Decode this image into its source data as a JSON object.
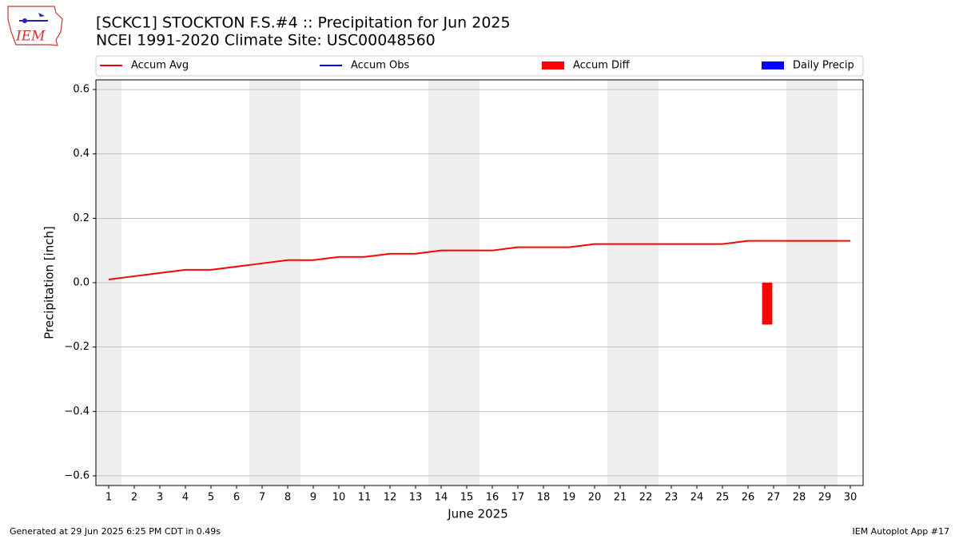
{
  "logo_text": "IEM",
  "footer": {
    "left": "Generated at 29 Jun 2025 6:25 PM CDT in 0.49s",
    "right": "IEM Autoplot App #17"
  },
  "chart_data": {
    "type": "line",
    "title": "[SCKC1] STOCKTON F.S.#4 :: Precipitation for Jun 2025",
    "subtitle": "NCEI 1991-2020 Climate Site: USC00048560",
    "x_label": "June 2025",
    "y_label": "Precipitation [inch]",
    "x": [
      1,
      2,
      3,
      4,
      5,
      6,
      7,
      8,
      9,
      10,
      11,
      12,
      13,
      14,
      15,
      16,
      17,
      18,
      19,
      20,
      21,
      22,
      23,
      24,
      25,
      26,
      27,
      28,
      29,
      30
    ],
    "xlim": [
      0.5,
      30.5
    ],
    "xticks": [
      1,
      2,
      3,
      4,
      5,
      6,
      7,
      8,
      9,
      10,
      11,
      12,
      13,
      14,
      15,
      16,
      17,
      18,
      19,
      20,
      21,
      22,
      23,
      24,
      25,
      26,
      27,
      28,
      29,
      30
    ],
    "ylim": [
      -0.63,
      0.63
    ],
    "yticks": [
      {
        "value": -0.6,
        "label": "−0.6"
      },
      {
        "value": -0.4,
        "label": "−0.4"
      },
      {
        "value": -0.2,
        "label": "−0.2"
      },
      {
        "value": 0,
        "label": "0.0"
      },
      {
        "value": 0.2,
        "label": "0.2"
      },
      {
        "value": 0.4,
        "label": "0.4"
      },
      {
        "value": 0.6,
        "label": "0.6"
      }
    ],
    "grid": true,
    "series": [
      {
        "name": "Accum Avg",
        "kind": "line",
        "color": "#ff0000",
        "values": [
          0.01,
          0.02,
          0.03,
          0.04,
          0.04,
          0.05,
          0.06,
          0.07,
          0.07,
          0.08,
          0.08,
          0.09,
          0.09,
          0.1,
          0.1,
          0.1,
          0.11,
          0.11,
          0.11,
          0.12,
          0.12,
          0.12,
          0.12,
          0.12,
          0.12,
          0.13,
          0.13,
          0.13,
          0.13,
          0.13
        ]
      },
      {
        "name": "Accum Obs",
        "kind": "line",
        "color": "#0000ff",
        "values": [
          null,
          null,
          null,
          null,
          null,
          null,
          null,
          null,
          null,
          null,
          null,
          null,
          null,
          null,
          null,
          null,
          null,
          null,
          null,
          null,
          null,
          null,
          null,
          null,
          null,
          null,
          null,
          null,
          null,
          null
        ]
      },
      {
        "name": "Accum Diff",
        "kind": "bar",
        "color": "#ff0000",
        "values": [
          null,
          null,
          null,
          null,
          null,
          null,
          null,
          null,
          null,
          null,
          null,
          null,
          null,
          null,
          null,
          null,
          null,
          null,
          null,
          null,
          null,
          null,
          null,
          null,
          null,
          null,
          -0.13,
          null,
          null,
          null
        ]
      },
      {
        "name": "Daily Precip",
        "kind": "bar",
        "color": "#0000ff",
        "values": [
          null,
          null,
          null,
          null,
          null,
          null,
          null,
          null,
          null,
          null,
          null,
          null,
          null,
          null,
          null,
          null,
          null,
          null,
          null,
          null,
          null,
          null,
          null,
          null,
          null,
          null,
          null,
          null,
          null,
          null
        ]
      }
    ]
  }
}
